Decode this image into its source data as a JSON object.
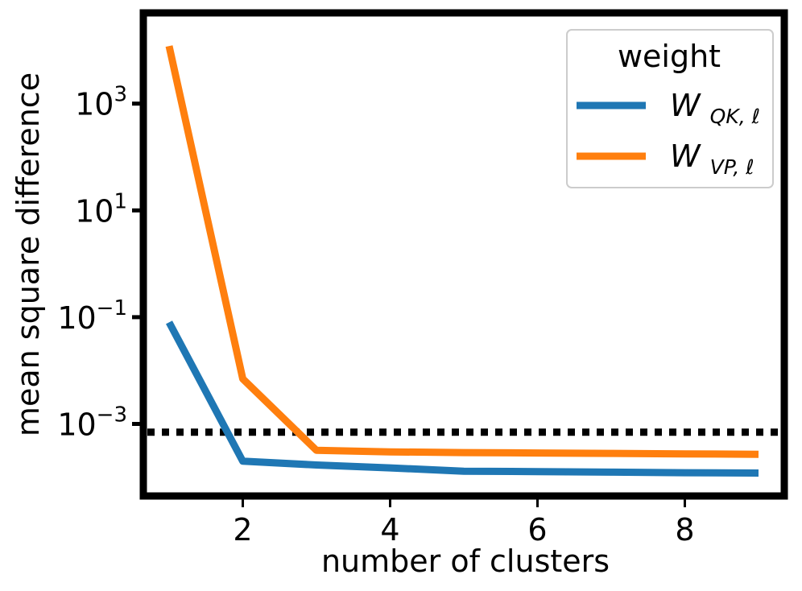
{
  "chart_data": {
    "type": "line",
    "title": "",
    "xlabel": "number of clusters",
    "ylabel": "mean square difference",
    "xlim": [
      0.65,
      9.35
    ],
    "ylim_log10": [
      -4.35,
      4.7
    ],
    "x_ticks": [
      {
        "value": 2,
        "label": "2"
      },
      {
        "value": 4,
        "label": "4"
      },
      {
        "value": 6,
        "label": "6"
      },
      {
        "value": 8,
        "label": "8"
      }
    ],
    "y_ticks": [
      {
        "exp": 3,
        "base": "10",
        "sup": "3"
      },
      {
        "exp": 1,
        "base": "10",
        "sup": "1"
      },
      {
        "exp": -1,
        "base": "10",
        "sup": "−1"
      },
      {
        "exp": -3,
        "base": "10",
        "sup": "−3"
      }
    ],
    "x": [
      1,
      2,
      3,
      4,
      5,
      6,
      7,
      8,
      9
    ],
    "series": [
      {
        "name": "W_QK,ℓ",
        "label_main": "W",
        "label_sub": "QK, ℓ",
        "color": "#1f77b4",
        "values": [
          0.08,
          0.0002,
          0.00017,
          0.00015,
          0.00013,
          0.000128,
          0.000125,
          0.000122,
          0.00012
        ]
      },
      {
        "name": "W_VP,ℓ",
        "label_main": "W",
        "label_sub": "VP, ℓ",
        "color": "#ff7f0e",
        "values": [
          12000,
          0.007,
          0.00032,
          0.0003,
          0.00029,
          0.000285,
          0.00028,
          0.000275,
          0.00027
        ]
      }
    ],
    "reference_line": {
      "value": 0.0007,
      "style": "dotted",
      "color": "#000000"
    },
    "legend": {
      "title": "weight",
      "position": "top-right"
    },
    "grid": false
  }
}
